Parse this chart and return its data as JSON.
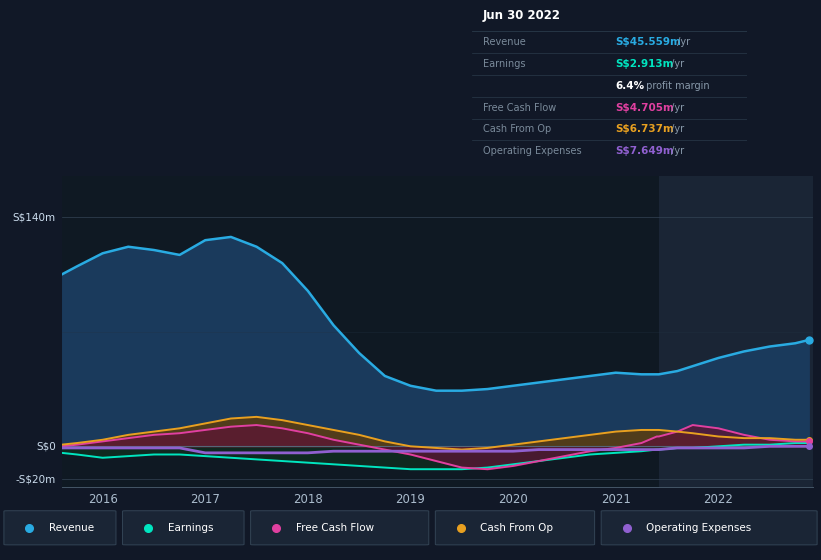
{
  "background_color": "#111827",
  "chart_bg_color": "#0f1923",
  "highlight_bg_color": "#1a2535",
  "ylim": [
    -25,
    165
  ],
  "xlim_start": 2015.6,
  "xlim_end": 2022.92,
  "xtick_values": [
    2016,
    2017,
    2018,
    2019,
    2020,
    2021,
    2022
  ],
  "xtick_labels": [
    "2016",
    "2017",
    "2018",
    "2019",
    "2020",
    "2021",
    "2022"
  ],
  "highlight_x_start": 2021.42,
  "revenue_color": "#29abe2",
  "earnings_color": "#00e5c0",
  "fcf_color": "#e040a0",
  "cashfromop_color": "#e8a020",
  "opex_color": "#9060d0",
  "legend_items": [
    "Revenue",
    "Earnings",
    "Free Cash Flow",
    "Cash From Op",
    "Operating Expenses"
  ],
  "legend_colors": [
    "#29abe2",
    "#00e5c0",
    "#e040a0",
    "#e8a020",
    "#9060d0"
  ],
  "table_title": "Jun 30 2022",
  "table_rows": [
    {
      "label": "Revenue",
      "value": "S$45.559m",
      "suffix": " /yr",
      "value_color": "#29abe2"
    },
    {
      "label": "Earnings",
      "value": "S$2.913m",
      "suffix": " /yr",
      "value_color": "#00e5c0"
    },
    {
      "label": "",
      "value": "6.4%",
      "suffix": " profit margin",
      "value_color": "#ffffff"
    },
    {
      "label": "Free Cash Flow",
      "value": "S$4.705m",
      "suffix": " /yr",
      "value_color": "#e040a0"
    },
    {
      "label": "Cash From Op",
      "value": "S$6.737m",
      "suffix": " /yr",
      "value_color": "#e8a020"
    },
    {
      "label": "Operating Expenses",
      "value": "S$7.649m",
      "suffix": " /yr",
      "value_color": "#9060d0"
    }
  ],
  "x": [
    2015.6,
    2015.75,
    2016.0,
    2016.25,
    2016.5,
    2016.75,
    2017.0,
    2017.25,
    2017.5,
    2017.75,
    2018.0,
    2018.25,
    2018.5,
    2018.75,
    2019.0,
    2019.25,
    2019.5,
    2019.75,
    2020.0,
    2020.25,
    2020.5,
    2020.75,
    2021.0,
    2021.25,
    2021.4,
    2021.42,
    2021.6,
    2021.75,
    2022.0,
    2022.25,
    2022.5,
    2022.75,
    2022.88
  ],
  "revenue": [
    105,
    110,
    118,
    122,
    120,
    117,
    126,
    128,
    122,
    112,
    95,
    74,
    57,
    43,
    37,
    34,
    34,
    35,
    37,
    39,
    41,
    43,
    45,
    44,
    44,
    44,
    46,
    49,
    54,
    58,
    61,
    63,
    65
  ],
  "earnings": [
    -4,
    -5,
    -7,
    -6,
    -5,
    -5,
    -6,
    -7,
    -8,
    -9,
    -10,
    -11,
    -12,
    -13,
    -14,
    -14,
    -14,
    -13,
    -11,
    -9,
    -7,
    -5,
    -4,
    -3,
    -2,
    -2,
    -1,
    -1,
    0,
    1,
    1,
    2,
    2
  ],
  "fcf": [
    0,
    1,
    3,
    5,
    7,
    8,
    10,
    12,
    13,
    11,
    8,
    4,
    1,
    -2,
    -5,
    -9,
    -13,
    -14,
    -12,
    -9,
    -6,
    -3,
    -1,
    2,
    6,
    6,
    9,
    13,
    11,
    7,
    4,
    3,
    3
  ],
  "cashfromop": [
    1,
    2,
    4,
    7,
    9,
    11,
    14,
    17,
    18,
    16,
    13,
    10,
    7,
    3,
    0,
    -1,
    -2,
    -1,
    1,
    3,
    5,
    7,
    9,
    10,
    10,
    10,
    9,
    8,
    6,
    5,
    5,
    4,
    4
  ],
  "opex": [
    -1,
    -1,
    -1,
    -1,
    -1,
    -1,
    -4,
    -4,
    -4,
    -4,
    -4,
    -3,
    -3,
    -3,
    -3,
    -3,
    -3,
    -3,
    -3,
    -2,
    -2,
    -2,
    -2,
    -2,
    -2,
    -2,
    -1,
    -1,
    -1,
    -1,
    0,
    0,
    0
  ]
}
